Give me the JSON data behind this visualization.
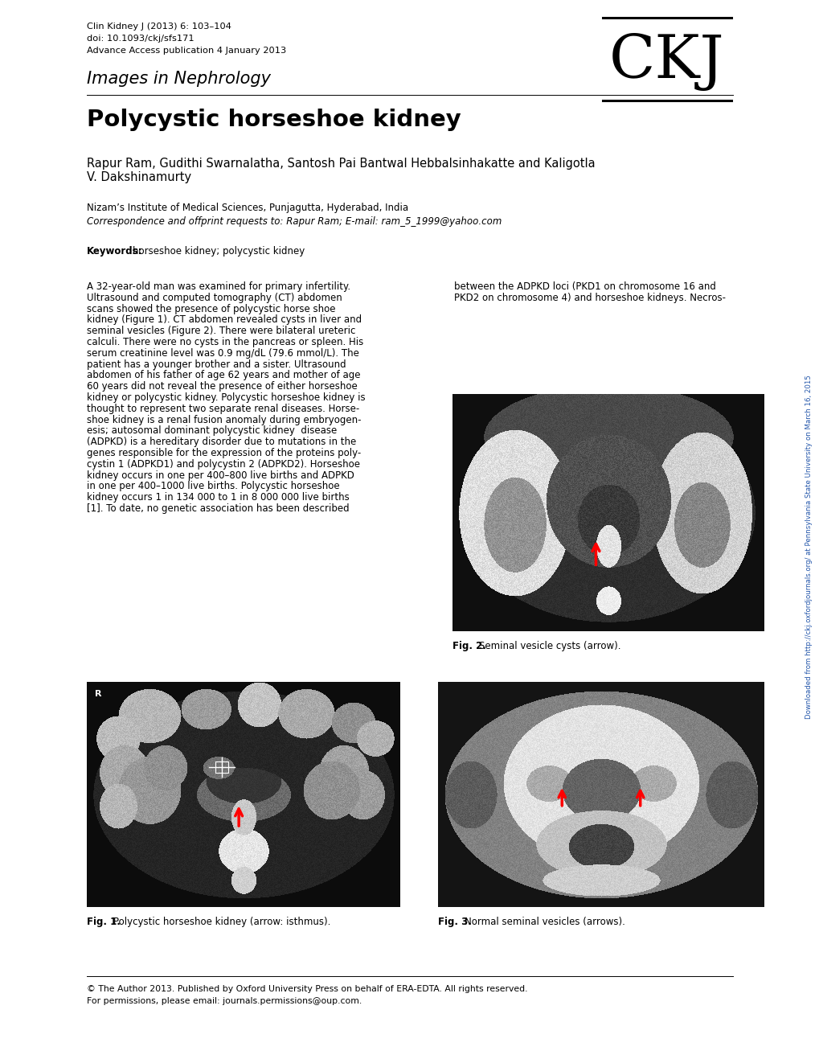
{
  "background_color": "#ffffff",
  "header_line1": "Clin Kidney J (2013) 6: 103–104",
  "header_line2": "doi: 10.1093/ckj/sfs171",
  "header_line3": "Advance Access publication 4 January 2013",
  "journal_section": "Images in Nephrology",
  "article_title": "Polycystic horseshoe kidney",
  "authors": "Rapur Ram, Gudithi Swarnalatha, Santosh Pai Bantwal Hebbalsinhakatte and Kaligotla",
  "authors2": "V. Dakshinamurty",
  "affiliation": "Nizam’s Institute of Medical Sciences, Punjagutta, Hyderabad, India",
  "correspondence": "Correspondence and offprint requests to: Rapur Ram; E-mail: ram_5_1999@yahoo.com",
  "keywords_label": "Keywords:",
  "keywords_text": "horseshoe kidney; polycystic kidney",
  "body_col1_lines": [
    "A 32-year-old man was examined for primary infertility.",
    "Ultrasound and computed tomography (CT) abdomen",
    "scans showed the presence of polycystic horse shoe",
    "kidney (Figure 1). CT abdomen revealed cysts in liver and",
    "seminal vesicles (Figure 2). There were bilateral ureteric",
    "calculi. There were no cysts in the pancreas or spleen. His",
    "serum creatinine level was 0.9 mg/dL (79.6 mmol/L). The",
    "patient has a younger brother and a sister. Ultrasound",
    "abdomen of his father of age 62 years and mother of age",
    "60 years did not reveal the presence of either horseshoe",
    "kidney or polycystic kidney. Polycystic horseshoe kidney is",
    "thought to represent two separate renal diseases. Horse-",
    "shoe kidney is a renal fusion anomaly during embryogen-",
    "esis; autosomal dominant polycystic kidney  disease",
    "(ADPKD) is a hereditary disorder due to mutations in the",
    "genes responsible for the expression of the proteins poly-",
    "cystin 1 (ADPKD1) and polycystin 2 (ADPKD2). Horseshoe",
    "kidney occurs in one per 400–800 live births and ADPKD",
    "in one per 400–1000 live births. Polycystic horseshoe",
    "kidney occurs 1 in 134 000 to 1 in 8 000 000 live births",
    "[1]. To date, no genetic association has been described"
  ],
  "body_col2_lines": [
    "between the ADPKD loci (PKD1 on chromosome 16 and",
    "PKD2 on chromosome 4) and horseshoe kidneys. Necros-"
  ],
  "fig2_caption_bold": "Fig. 2.",
  "fig2_caption_rest": "  Seminal vesicle cysts (arrow).",
  "fig1_caption_bold": "Fig. 1.",
  "fig1_caption_rest": "  Polycystic horseshoe kidney (arrow: isthmus).",
  "fig3_caption_bold": "Fig. 3.",
  "fig3_caption_rest": "  Normal seminal vesicles (arrows).",
  "sidebar_text": "Downloaded from http://ckj.oxfordjournals.org/ at Pennsylvania State University on March 16, 2015",
  "footer_line1": "© The Author 2013. Published by Oxford University Press on behalf of ERA-EDTA. All rights reserved.",
  "footer_line2": "For permissions, please email: journals.permissions@oup.com."
}
